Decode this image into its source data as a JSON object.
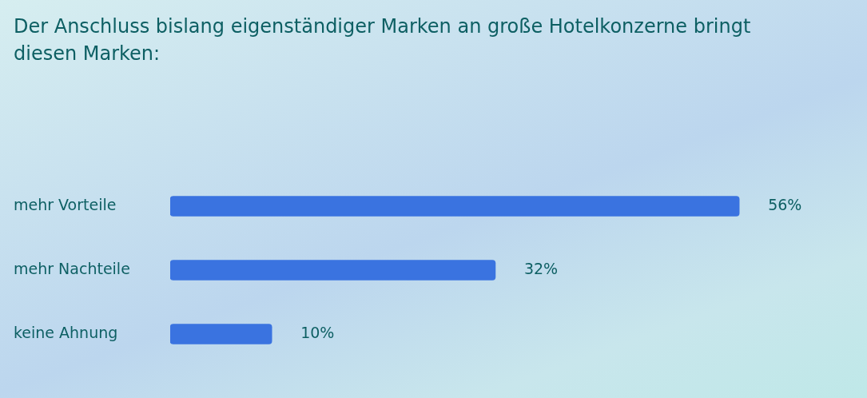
{
  "chart_data": {
    "type": "bar",
    "orientation": "horizontal",
    "title": "Der Anschluss bislang eigenständiger Marken an große Hotelkonzerne bringt diesen Marken:",
    "categories": [
      "mehr Vorteile",
      "mehr Nachteile",
      "keine Ahnung"
    ],
    "values": [
      56,
      32,
      10
    ],
    "value_labels": [
      "56%",
      "32%",
      "10%"
    ],
    "color": "#3a73e0",
    "grid": false,
    "legend": false
  }
}
